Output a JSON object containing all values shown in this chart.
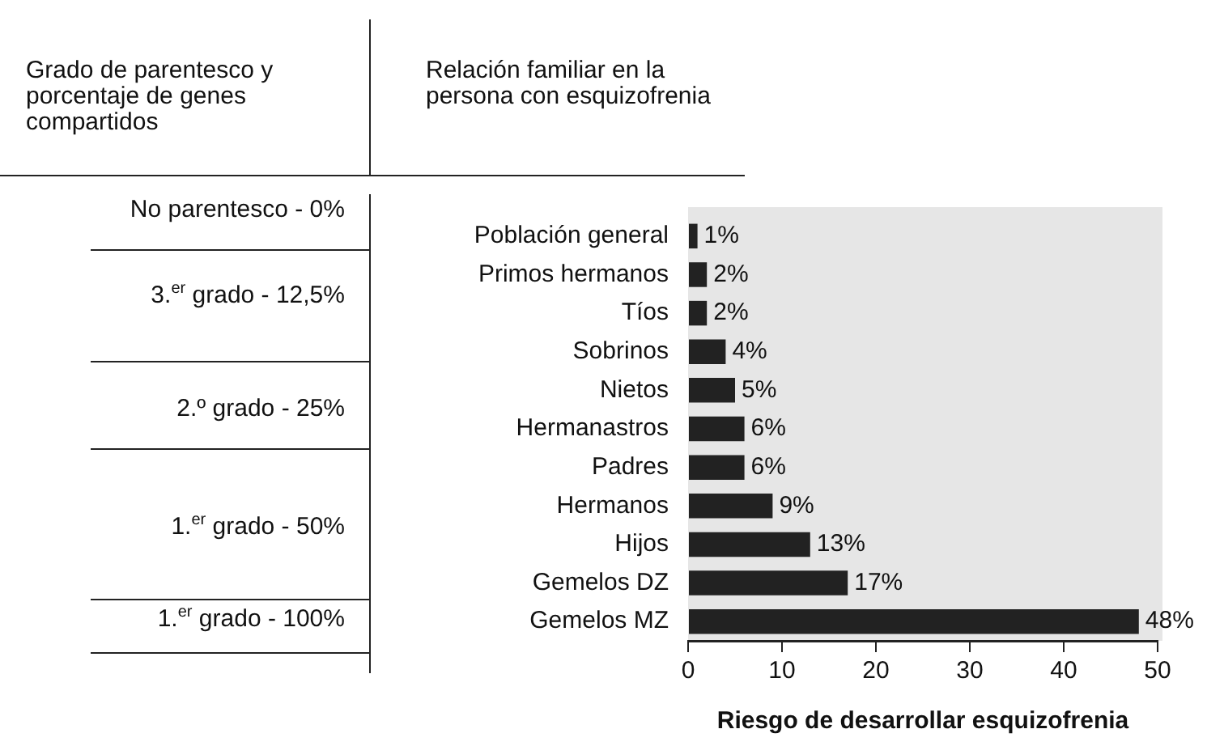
{
  "chart_data": {
    "type": "bar",
    "orientation": "horizontal",
    "ylabel": "Relación familiar en la persona con esquizofrenia",
    "xlabel": "Riesgo de desarrollar esquizofrenia",
    "categories": [
      "Población general",
      "Primos hermanos",
      "Tíos",
      "Sobrinos",
      "Nietos",
      "Hermanastros",
      "Padres",
      "Hermanos",
      "Hijos",
      "Gemelos DZ",
      "Gemelos MZ"
    ],
    "values": [
      1,
      2,
      2,
      4,
      5,
      6,
      6,
      9,
      13,
      17,
      48
    ],
    "value_labels": [
      "1%",
      "2%",
      "2%",
      "4%",
      "5%",
      "6%",
      "6%",
      "9%",
      "13%",
      "17%",
      "48%"
    ],
    "color": "#222222",
    "xlim": [
      0,
      50
    ],
    "xticks": [
      0,
      10,
      20,
      30,
      40,
      50
    ],
    "annotations": [
      "Grado de parentesco y porcentaje de genes compartidos",
      "No parentesco - 0%",
      "3.$^{er}$ grado - 12,5%",
      "2.º grado - 25%",
      "1.$^{er}$ grado - 50%",
      "1.$^{er}$ grado - 100%"
    ],
    "legend": false
  }
}
